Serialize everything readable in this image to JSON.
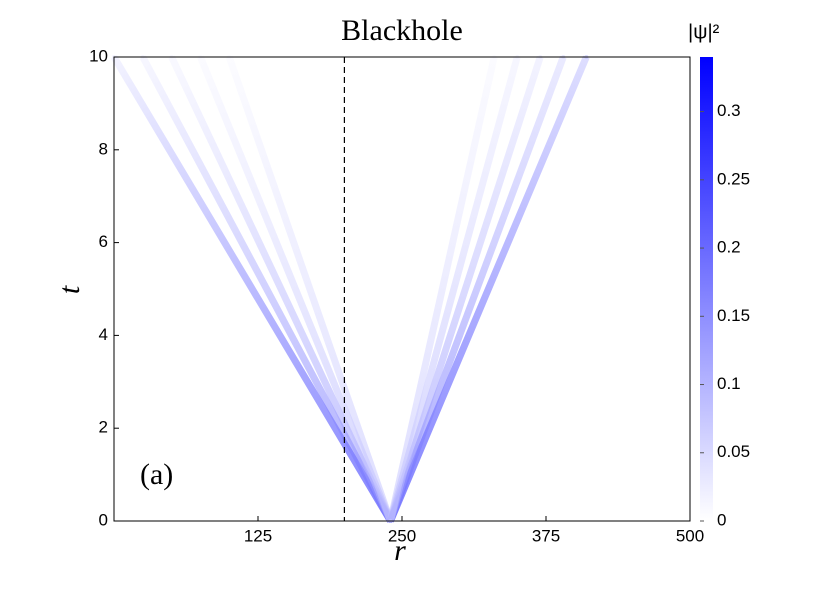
{
  "chart_data": {
    "type": "heatmap",
    "title": "Blackhole",
    "xlabel": "r",
    "ylabel": "t",
    "annotation": "(a)",
    "colorbar_label": "|ψ|²",
    "xlim": [
      0,
      500
    ],
    "xticks": [
      125,
      250,
      375,
      500
    ],
    "ylim": [
      0,
      10
    ],
    "yticks": [
      0,
      2,
      4,
      6,
      8,
      10
    ],
    "clim": [
      0,
      0.34
    ],
    "cticks": [
      0,
      0.05,
      0.1,
      0.15,
      0.2,
      0.25,
      0.3
    ],
    "colormap": [
      "#ffffff",
      "#0000ff"
    ],
    "vline": 200,
    "series": [
      {
        "x": [
          240,
          0
        ],
        "y": [
          0,
          10
        ],
        "values": [
          0.3,
          0.03
        ]
      },
      {
        "x": [
          240,
          25
        ],
        "y": [
          0,
          10
        ],
        "values": [
          0.2,
          0.02
        ]
      },
      {
        "x": [
          240,
          50
        ],
        "y": [
          0,
          10
        ],
        "values": [
          0.15,
          0.015
        ]
      },
      {
        "x": [
          240,
          75
        ],
        "y": [
          0,
          10
        ],
        "values": [
          0.1,
          0.01
        ]
      },
      {
        "x": [
          240,
          100
        ],
        "y": [
          0,
          10
        ],
        "values": [
          0.08,
          0.008
        ]
      },
      {
        "x": [
          240,
          410
        ],
        "y": [
          0,
          10
        ],
        "values": [
          0.3,
          0.08
        ]
      },
      {
        "x": [
          240,
          390
        ],
        "y": [
          0,
          10
        ],
        "values": [
          0.2,
          0.05
        ]
      },
      {
        "x": [
          240,
          370
        ],
        "y": [
          0,
          10
        ],
        "values": [
          0.15,
          0.03
        ]
      },
      {
        "x": [
          240,
          350
        ],
        "y": [
          0,
          10
        ],
        "values": [
          0.1,
          0.02
        ]
      },
      {
        "x": [
          240,
          330
        ],
        "y": [
          0,
          10
        ],
        "values": [
          0.08,
          0.01
        ]
      }
    ]
  }
}
